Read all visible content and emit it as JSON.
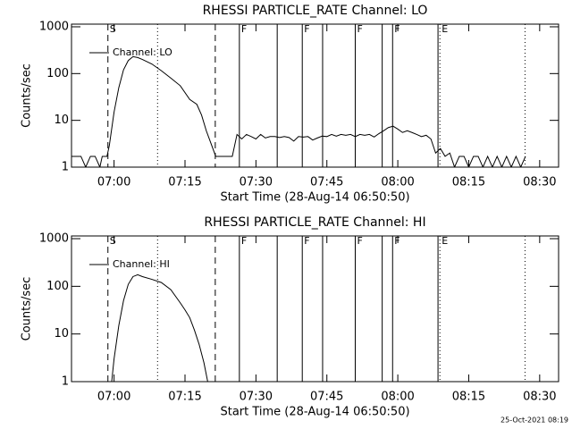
{
  "chart_data": [
    {
      "type": "line",
      "title": "RHESSI PARTICLE_RATE Channel: LO",
      "xlabel": "Start Time (28-Aug-14 06:50:50)",
      "ylabel": "Counts/sec",
      "log_y": true,
      "legend": "upper left",
      "xlim": [
        411,
        514
      ],
      "ylim": [
        1,
        1140
      ],
      "xticks": [
        {
          "value": 420,
          "label": "07:00"
        },
        {
          "value": 435,
          "label": "07:15"
        },
        {
          "value": 450,
          "label": "07:30"
        },
        {
          "value": 465,
          "label": "07:45"
        },
        {
          "value": 480,
          "label": "08:00"
        },
        {
          "value": 495,
          "label": "08:15"
        },
        {
          "value": 510,
          "label": "08:30"
        }
      ],
      "yticks": [
        1,
        10,
        100,
        1000
      ],
      "markers": [
        {
          "x": 418.7,
          "style": "dashed",
          "label": "S"
        },
        {
          "x": 429.2,
          "style": "dotted"
        },
        {
          "x": 441.4,
          "style": "dashed"
        },
        {
          "x": 446.5,
          "style": "solid",
          "label": "F"
        },
        {
          "x": 454.5,
          "style": "solid"
        },
        {
          "x": 459.8,
          "style": "solid",
          "label": "F"
        },
        {
          "x": 464.1,
          "style": "solid"
        },
        {
          "x": 471.0,
          "style": "solid",
          "label": "F"
        },
        {
          "x": 476.7,
          "style": "solid"
        },
        {
          "x": 478.9,
          "style": "solid",
          "label": "F"
        },
        {
          "x": 488.5,
          "style": "solid"
        },
        {
          "x": 488.9,
          "style": "dotted",
          "label": "E"
        },
        {
          "x": 506.9,
          "style": "dotted"
        }
      ],
      "x": [
        411,
        413,
        414,
        415,
        416,
        417,
        417.5,
        418.5,
        419,
        420,
        421,
        422,
        423,
        424,
        425,
        426,
        428,
        430,
        432,
        434,
        436,
        437.5,
        438.5,
        439.5,
        440.5,
        441.5,
        443,
        444,
        445,
        446,
        447,
        448,
        449,
        450,
        451,
        452,
        453,
        454,
        455,
        456,
        457,
        458,
        459,
        460,
        461,
        462,
        463,
        464,
        465,
        466,
        467,
        468,
        469,
        470,
        471,
        472,
        473,
        474,
        475,
        476,
        477,
        478,
        479,
        480,
        481,
        482,
        483,
        484,
        485,
        486,
        487,
        488,
        489,
        490,
        491,
        492,
        493,
        494,
        495,
        496,
        497,
        498,
        499,
        500,
        501,
        502,
        503,
        504,
        505,
        506,
        507
      ],
      "series": [
        {
          "name": "Channel: LO",
          "color": "#000000",
          "values": [
            1.7,
            1.7,
            1,
            1.7,
            1.7,
            1,
            1.7,
            1.7,
            2.9,
            15,
            50,
            120,
            190,
            230,
            220,
            200,
            160,
            115,
            80,
            55,
            28,
            22,
            13,
            6,
            3.2,
            1.7,
            1.7,
            1.7,
            1.7,
            5,
            4,
            5,
            4.5,
            4,
            5,
            4.2,
            4.5,
            4.5,
            4.3,
            4.5,
            4.3,
            3.6,
            4.5,
            4.4,
            4.5,
            3.8,
            4.2,
            4.6,
            4.5,
            5,
            4.6,
            5,
            4.8,
            5,
            4.5,
            5,
            4.8,
            5,
            4.4,
            5.2,
            6,
            7,
            7.5,
            6.5,
            5.5,
            6,
            5.5,
            5,
            4.5,
            4.8,
            4,
            2,
            2.5,
            1.7,
            2,
            1,
            1.7,
            1.7,
            1,
            1.7,
            1.7,
            1,
            1.7,
            1,
            1.7,
            1,
            1.7,
            1,
            1.7,
            1,
            1.7
          ]
        }
      ]
    },
    {
      "type": "line",
      "title": "RHESSI PARTICLE_RATE Channel: HI",
      "xlabel": "Start Time (28-Aug-14 06:50:50)",
      "ylabel": "Counts/sec",
      "log_y": true,
      "legend": "upper left",
      "xlim": [
        411,
        514
      ],
      "ylim": [
        1,
        1140
      ],
      "xticks": [
        {
          "value": 420,
          "label": "07:00"
        },
        {
          "value": 435,
          "label": "07:15"
        },
        {
          "value": 450,
          "label": "07:30"
        },
        {
          "value": 465,
          "label": "07:45"
        },
        {
          "value": 480,
          "label": "08:00"
        },
        {
          "value": 495,
          "label": "08:15"
        },
        {
          "value": 510,
          "label": "08:30"
        }
      ],
      "yticks": [
        1,
        10,
        100,
        1000
      ],
      "markers": [
        {
          "x": 418.7,
          "style": "dashed",
          "label": "S"
        },
        {
          "x": 429.2,
          "style": "dotted"
        },
        {
          "x": 441.4,
          "style": "dashed"
        },
        {
          "x": 446.5,
          "style": "solid",
          "label": "F"
        },
        {
          "x": 454.5,
          "style": "solid"
        },
        {
          "x": 459.8,
          "style": "solid",
          "label": "F"
        },
        {
          "x": 464.1,
          "style": "solid"
        },
        {
          "x": 471.0,
          "style": "solid",
          "label": "F"
        },
        {
          "x": 476.7,
          "style": "solid"
        },
        {
          "x": 478.9,
          "style": "solid",
          "label": "F"
        },
        {
          "x": 488.5,
          "style": "solid"
        },
        {
          "x": 488.9,
          "style": "dotted",
          "label": "E"
        },
        {
          "x": 506.9,
          "style": "dotted"
        }
      ],
      "x": [
        419.5,
        420,
        421,
        422,
        423,
        424,
        425,
        426,
        428,
        430,
        432,
        434,
        435,
        436,
        437,
        438,
        439,
        439.8
      ],
      "series": [
        {
          "name": "Channel: HI",
          "color": "#000000",
          "values": [
            1,
            3,
            15,
            50,
            110,
            160,
            175,
            160,
            140,
            120,
            85,
            45,
            32,
            22,
            12,
            6,
            2.5,
            1
          ]
        }
      ]
    }
  ],
  "footer": "25-Oct-2021 08:19"
}
